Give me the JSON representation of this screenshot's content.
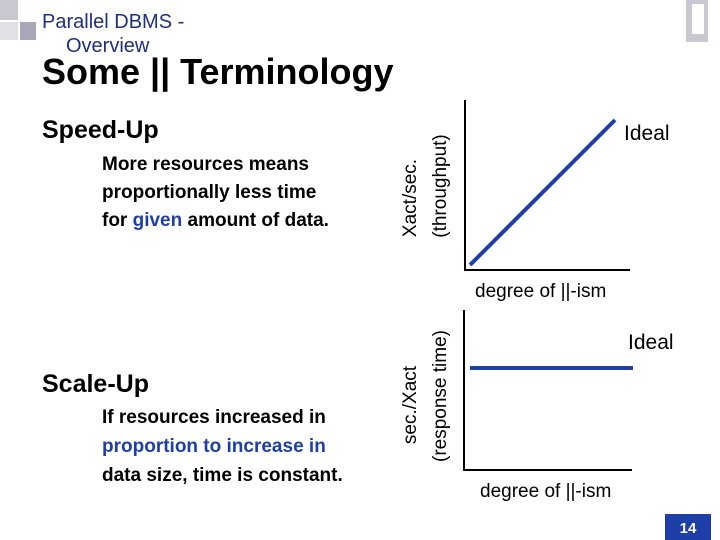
{
  "header": {
    "title": [
      "Parallel DBMS -",
      "Overview"
    ],
    "color": "#1f2f7f"
  },
  "slide": {
    "title": "Some || Terminology",
    "page_number": "14"
  },
  "sections": [
    {
      "heading": "Speed-Up",
      "lines": [
        [
          {
            "text": "More resources means"
          }
        ],
        [
          {
            "text": "proportionally less time"
          }
        ],
        [
          {
            "text": "for "
          },
          {
            "text": "given",
            "color": "#1f3fa8"
          },
          {
            "text": " amount of data."
          }
        ]
      ],
      "y_label": [
        "Xact/sec.",
        "(throughput)"
      ],
      "x_label": "degree of ||-ism",
      "curve_label": "Ideal"
    },
    {
      "heading": "Scale-Up",
      "lines": [
        [
          {
            "text": "If resources increased in"
          }
        ],
        [
          {
            "text": "proportion to increase in",
            "color": "#1f3fa8"
          }
        ],
        [
          {
            "text": "data size, time is constant."
          }
        ]
      ],
      "y_label": [
        "sec./Xact",
        "(response time)"
      ],
      "x_label": "degree of ||-ism",
      "curve_label": "Ideal"
    }
  ]
}
